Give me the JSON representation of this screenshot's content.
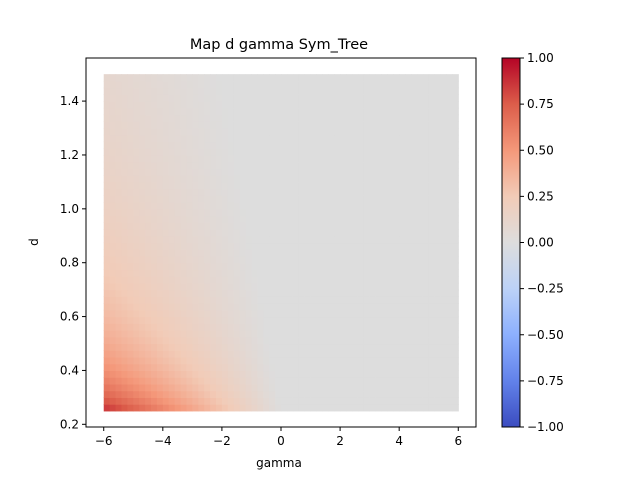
{
  "chart_data": {
    "type": "heatmap",
    "title": "Map d gamma Sym_Tree",
    "xlabel": "gamma",
    "ylabel": "d",
    "xlim": [
      -6.6,
      6.6
    ],
    "ylim": [
      0.19,
      1.56
    ],
    "x_ticks": [
      -6,
      -4,
      -2,
      0,
      2,
      4,
      6
    ],
    "x_tick_labels": [
      "−6",
      "−4",
      "−2",
      "0",
      "2",
      "4",
      "6"
    ],
    "y_ticks": [
      0.2,
      0.4,
      0.6,
      0.8,
      1.0,
      1.2,
      1.4
    ],
    "y_tick_labels": [
      "0.2",
      "0.4",
      "0.6",
      "0.8",
      "1.0",
      "1.2",
      "1.4"
    ],
    "data_x_range": [
      -6,
      6
    ],
    "data_y_range": [
      0.25,
      1.5
    ],
    "value_model": "value = max(0, (-gamma) * 0.6 / d) capped at 1 where d*... ; zero region for gamma >= boundary(d)",
    "boundary": {
      "points": [
        [
          0,
          0.25
        ],
        [
          -2,
          1.5
        ]
      ]
    },
    "colormap": "coolwarm",
    "colorbar": {
      "vmin": -1.0,
      "vmax": 1.0,
      "ticks": [
        1.0,
        0.75,
        0.5,
        0.25,
        0.0,
        -0.25,
        -0.5,
        -0.75,
        -1.0
      ],
      "tick_labels": [
        "1.00",
        "0.75",
        "0.50",
        "0.25",
        "0.00",
        "−0.25",
        "−0.50",
        "−0.75",
        "−1.00"
      ]
    },
    "grid": false,
    "colors": {
      "low": "#3b4cc0",
      "mid": "#dddddd",
      "high": "#b40426"
    }
  }
}
